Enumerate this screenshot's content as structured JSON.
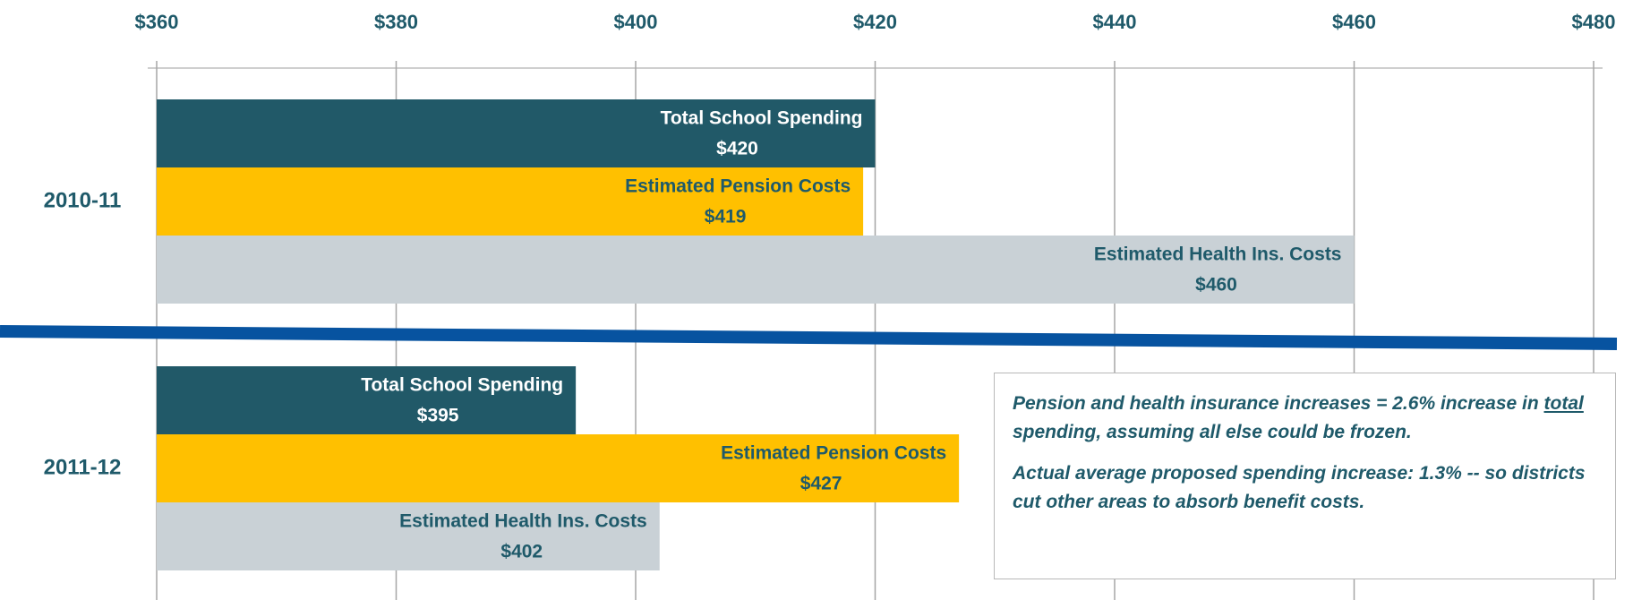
{
  "chart_data": {
    "type": "bar",
    "orientation": "horizontal",
    "categories": [
      "2010-11",
      "2011-12"
    ],
    "series": [
      {
        "name": "Total School Spending",
        "color": "#215968",
        "label_color": "#ffffff",
        "values": [
          420,
          395
        ],
        "value_labels": [
          "$420",
          "$395"
        ]
      },
      {
        "name": "Estimated Pension Costs",
        "color": "#ffc000",
        "label_color": "#1f5a6a",
        "values": [
          419,
          427
        ],
        "value_labels": [
          "$419",
          "$427"
        ]
      },
      {
        "name": "Estimated Health Ins. Costs",
        "color": "#c9d1d6",
        "label_color": "#1f5a6a",
        "values": [
          460,
          402
        ],
        "value_labels": [
          "$460",
          "$402"
        ]
      }
    ],
    "xlim": [
      360,
      480
    ],
    "xticks": [
      {
        "value": 360,
        "label": "$360"
      },
      {
        "value": 380,
        "label": "$380"
      },
      {
        "value": 400,
        "label": "$400"
      },
      {
        "value": 420,
        "label": "$420"
      },
      {
        "value": 440,
        "label": "$440"
      },
      {
        "value": 460,
        "label": "$460"
      },
      {
        "value": 480,
        "label": "$480"
      }
    ],
    "grid": true,
    "annotation": {
      "paragraph1": [
        "Pension and health insurance increases = 2.6% increase in ",
        "total",
        " spending, assuming all else could be frozen."
      ],
      "paragraph2": "Actual average proposed spending increase:  1.3% -- so districts cut other areas to absorb benefit costs."
    }
  }
}
